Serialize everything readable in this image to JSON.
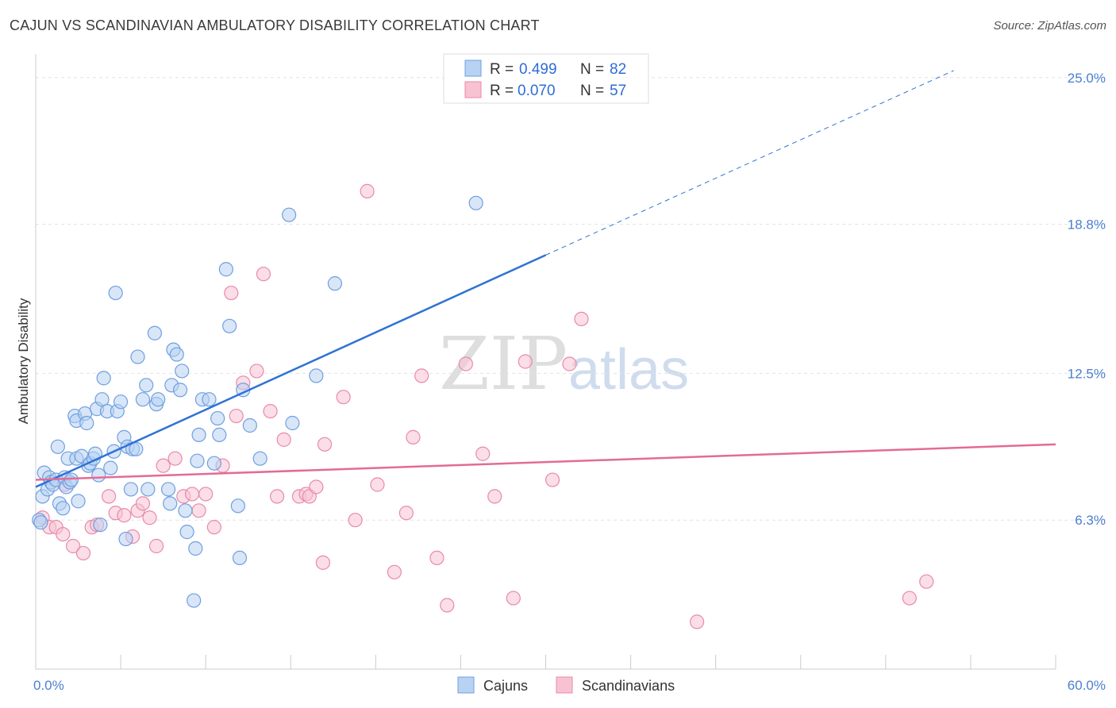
{
  "header": {
    "title": "CAJUN VS SCANDINAVIAN AMBULATORY DISABILITY CORRELATION CHART",
    "source": "Source: ZipAtlas.com"
  },
  "watermark": {
    "zip": "ZIP",
    "atlas": "atlas"
  },
  "colors": {
    "cajun_fill": "#b8d2f3",
    "cajun_stroke": "#6f9fe0",
    "cajun_line": "#2f72d3",
    "scand_fill": "#f7c3d3",
    "scand_stroke": "#e88aa9",
    "scand_line": "#e36b96"
  },
  "legend": {
    "rows": [
      {
        "r_label": "R =",
        "r_value": "0.499",
        "n_label": "N =",
        "n_value": "82"
      },
      {
        "r_label": "R =",
        "r_value": "0.070",
        "n_label": "N =",
        "n_value": "57"
      }
    ],
    "bottom": [
      "Cajuns",
      "Scandinavians"
    ]
  },
  "chart_data": {
    "type": "scatter",
    "ylabel": "Ambulatory Disability",
    "xlim": [
      0,
      60
    ],
    "ylim": [
      0,
      26
    ],
    "x_tick_labels": [
      "0.0%",
      "60.0%"
    ],
    "y_ticks": [
      {
        "value": 6.3,
        "label": "6.3%"
      },
      {
        "value": 12.5,
        "label": "12.5%"
      },
      {
        "value": 18.8,
        "label": "18.8%"
      },
      {
        "value": 25.0,
        "label": "25.0%"
      }
    ],
    "series": [
      {
        "name": "Cajuns",
        "trend": {
          "x0": 0,
          "y0": 7.7,
          "x1": 30,
          "y1": 17.5,
          "dash_to_x": 54,
          "dash_to_y": 25.3
        },
        "points": [
          [
            0.2,
            6.3
          ],
          [
            0.3,
            6.2
          ],
          [
            0.4,
            7.3
          ],
          [
            0.5,
            8.3
          ],
          [
            0.7,
            7.6
          ],
          [
            0.8,
            8.1
          ],
          [
            0.9,
            7.9
          ],
          [
            1.0,
            7.8
          ],
          [
            1.2,
            8.0
          ],
          [
            1.3,
            9.4
          ],
          [
            1.4,
            7.0
          ],
          [
            1.6,
            6.8
          ],
          [
            1.7,
            8.1
          ],
          [
            1.8,
            7.7
          ],
          [
            1.9,
            8.9
          ],
          [
            2.0,
            7.9
          ],
          [
            2.1,
            8.0
          ],
          [
            2.3,
            10.7
          ],
          [
            2.4,
            10.5
          ],
          [
            2.4,
            8.9
          ],
          [
            2.5,
            7.1
          ],
          [
            2.7,
            9.0
          ],
          [
            2.9,
            10.8
          ],
          [
            3.0,
            10.4
          ],
          [
            3.1,
            8.6
          ],
          [
            3.2,
            8.7
          ],
          [
            3.4,
            8.9
          ],
          [
            3.5,
            9.1
          ],
          [
            3.6,
            11.0
          ],
          [
            3.7,
            8.2
          ],
          [
            3.8,
            6.1
          ],
          [
            3.9,
            11.4
          ],
          [
            4.0,
            12.3
          ],
          [
            4.2,
            10.9
          ],
          [
            4.4,
            8.5
          ],
          [
            4.6,
            9.2
          ],
          [
            4.7,
            15.9
          ],
          [
            4.8,
            10.9
          ],
          [
            5.0,
            11.3
          ],
          [
            5.2,
            9.8
          ],
          [
            5.3,
            5.5
          ],
          [
            5.4,
            9.4
          ],
          [
            5.6,
            7.6
          ],
          [
            5.7,
            9.3
          ],
          [
            5.9,
            9.3
          ],
          [
            6.0,
            13.2
          ],
          [
            6.3,
            11.4
          ],
          [
            6.5,
            12.0
          ],
          [
            6.6,
            7.6
          ],
          [
            7.0,
            14.2
          ],
          [
            7.1,
            11.2
          ],
          [
            7.2,
            11.4
          ],
          [
            7.8,
            7.6
          ],
          [
            7.9,
            7.0
          ],
          [
            8.0,
            12.0
          ],
          [
            8.1,
            13.5
          ],
          [
            8.3,
            13.3
          ],
          [
            8.5,
            11.8
          ],
          [
            8.6,
            12.6
          ],
          [
            8.8,
            6.7
          ],
          [
            8.9,
            5.8
          ],
          [
            9.4,
            5.1
          ],
          [
            9.5,
            8.8
          ],
          [
            9.6,
            9.9
          ],
          [
            9.8,
            11.4
          ],
          [
            9.3,
            2.9
          ],
          [
            10.2,
            11.4
          ],
          [
            10.5,
            8.7
          ],
          [
            10.7,
            10.6
          ],
          [
            10.8,
            9.9
          ],
          [
            11.2,
            16.9
          ],
          [
            11.4,
            14.5
          ],
          [
            11.9,
            6.9
          ],
          [
            12.0,
            4.7
          ],
          [
            12.2,
            11.8
          ],
          [
            12.6,
            10.3
          ],
          [
            13.2,
            8.9
          ],
          [
            14.9,
            19.2
          ],
          [
            15.1,
            10.4
          ],
          [
            16.5,
            12.4
          ],
          [
            17.6,
            16.3
          ],
          [
            25.9,
            19.7
          ]
        ]
      },
      {
        "name": "Scandinavians",
        "trend": {
          "x0": 0,
          "y0": 8.0,
          "x1": 60,
          "y1": 9.5
        },
        "points": [
          [
            0.4,
            6.4
          ],
          [
            0.8,
            6.0
          ],
          [
            1.2,
            6.0
          ],
          [
            1.6,
            5.7
          ],
          [
            1.7,
            7.8
          ],
          [
            2.2,
            5.2
          ],
          [
            2.8,
            4.9
          ],
          [
            3.3,
            6.0
          ],
          [
            3.6,
            6.1
          ],
          [
            4.3,
            7.3
          ],
          [
            4.7,
            6.6
          ],
          [
            5.2,
            6.5
          ],
          [
            5.7,
            5.6
          ],
          [
            6.0,
            6.7
          ],
          [
            6.3,
            7.0
          ],
          [
            6.7,
            6.4
          ],
          [
            7.1,
            5.2
          ],
          [
            7.5,
            8.6
          ],
          [
            8.2,
            8.9
          ],
          [
            8.7,
            7.3
          ],
          [
            9.2,
            7.4
          ],
          [
            9.6,
            6.7
          ],
          [
            10.0,
            7.4
          ],
          [
            10.5,
            6.0
          ],
          [
            11.0,
            8.6
          ],
          [
            11.5,
            15.9
          ],
          [
            11.8,
            10.7
          ],
          [
            12.2,
            12.1
          ],
          [
            13.0,
            12.6
          ],
          [
            13.4,
            16.7
          ],
          [
            13.8,
            10.9
          ],
          [
            14.2,
            7.3
          ],
          [
            14.6,
            9.7
          ],
          [
            15.5,
            7.3
          ],
          [
            15.9,
            7.4
          ],
          [
            16.1,
            7.3
          ],
          [
            16.5,
            7.7
          ],
          [
            16.9,
            4.5
          ],
          [
            17.0,
            9.5
          ],
          [
            18.1,
            11.5
          ],
          [
            18.8,
            6.3
          ],
          [
            19.5,
            20.2
          ],
          [
            20.1,
            7.8
          ],
          [
            21.1,
            4.1
          ],
          [
            21.8,
            6.6
          ],
          [
            22.2,
            9.8
          ],
          [
            22.7,
            12.4
          ],
          [
            23.6,
            4.7
          ],
          [
            24.2,
            2.7
          ],
          [
            25.3,
            12.9
          ],
          [
            26.3,
            9.1
          ],
          [
            27.0,
            7.3
          ],
          [
            28.1,
            3.0
          ],
          [
            28.8,
            13.0
          ],
          [
            30.4,
            8.0
          ],
          [
            31.4,
            12.9
          ],
          [
            32.1,
            14.8
          ],
          [
            38.9,
            2.0
          ],
          [
            51.4,
            3.0
          ],
          [
            52.4,
            3.7
          ]
        ]
      }
    ]
  }
}
